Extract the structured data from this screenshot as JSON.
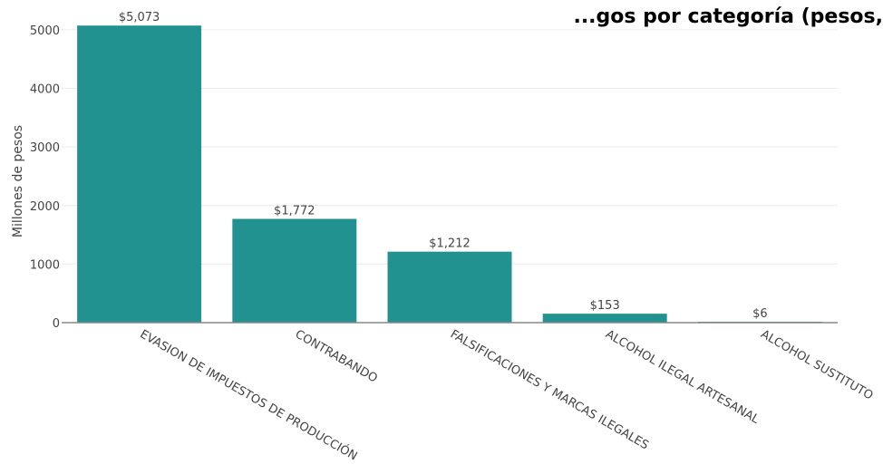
{
  "chart_data": {
    "type": "bar",
    "title": "...gos por categoría (pesos,",
    "ylabel": "Millones de pesos",
    "xlabel": "",
    "categories": [
      "EVASION DE IMPUESTOS DE PRODUCCIÓN",
      "CONTRABANDO",
      "FALSIFICACIONES Y MARCAS ILEGALES",
      "ALCOHOL ILEGAL ARTESANAL",
      "ALCOHOL SUSTITUTO"
    ],
    "values": [
      5073,
      1772,
      1212,
      153,
      6
    ],
    "data_labels": [
      "$5,073",
      "$1,772",
      "$1,212",
      "$153",
      "$6"
    ],
    "ylim": [
      0,
      5200
    ],
    "yticks": [
      0,
      1000,
      2000,
      3000,
      4000,
      5000
    ],
    "grid": true,
    "colors": {
      "bar": "#219290",
      "grid": "#ebebeb",
      "axis": "#888888"
    }
  }
}
